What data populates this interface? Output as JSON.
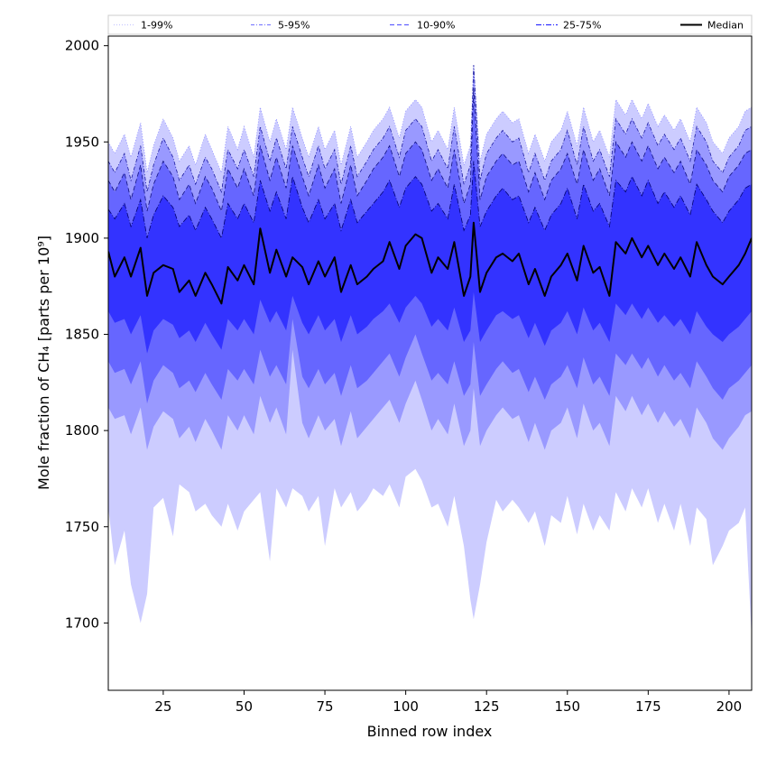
{
  "chart_data": {
    "type": "area",
    "xlabel": "Binned row index",
    "ylabel": "Mole fraction of CH₄ [parts per 10⁹]",
    "xlim": [
      8,
      207
    ],
    "ylim": [
      1665,
      2005
    ],
    "xticks": [
      25,
      50,
      75,
      100,
      125,
      150,
      175,
      200
    ],
    "yticks": [
      1700,
      1750,
      1800,
      1850,
      1900,
      1950,
      2000
    ],
    "grid": false,
    "legend_position": "top",
    "legend": [
      {
        "label": "1-99%",
        "style": "dotted",
        "color": "#c8c8ff"
      },
      {
        "label": "5-95%",
        "style": "dashdot",
        "color": "#8080ff"
      },
      {
        "label": "10-90%",
        "style": "dashed",
        "color": "#6060ff"
      },
      {
        "label": "25-75%",
        "style": "dashdot-dense",
        "color": "#3030ff"
      },
      {
        "label": "Median",
        "style": "solid",
        "color": "#000000"
      }
    ],
    "band_colors": {
      "p1_99": "#ccccff",
      "p5_95": "#9999ff",
      "p10_90": "#6666ff",
      "p25_75": "#3333ff"
    },
    "x_key": [
      8,
      10,
      13,
      15,
      18,
      20,
      22,
      25,
      28,
      30,
      33,
      35,
      38,
      40,
      43,
      45,
      48,
      50,
      53,
      55,
      58,
      60,
      63,
      65,
      68,
      70,
      73,
      75,
      78,
      80,
      83,
      85,
      88,
      90,
      93,
      95,
      98,
      100,
      103,
      105,
      108,
      110,
      113,
      115,
      118,
      120,
      121,
      123,
      125,
      128,
      130,
      133,
      135,
      138,
      140,
      143,
      145,
      148,
      150,
      153,
      155,
      158,
      160,
      163,
      165,
      168,
      170,
      173,
      175,
      178,
      180,
      183,
      185,
      188,
      190,
      193,
      195,
      198,
      200,
      203,
      205,
      207
    ],
    "median": [
      1893,
      1880,
      1890,
      1880,
      1895,
      1870,
      1882,
      1886,
      1884,
      1872,
      1878,
      1870,
      1882,
      1876,
      1866,
      1885,
      1878,
      1886,
      1876,
      1905,
      1882,
      1894,
      1880,
      1890,
      1885,
      1876,
      1888,
      1880,
      1890,
      1872,
      1886,
      1876,
      1880,
      1884,
      1888,
      1898,
      1884,
      1896,
      1902,
      1900,
      1882,
      1890,
      1884,
      1898,
      1870,
      1880,
      1908,
      1872,
      1882,
      1890,
      1892,
      1888,
      1892,
      1876,
      1884,
      1870,
      1880,
      1886,
      1892,
      1878,
      1896,
      1882,
      1885,
      1870,
      1898,
      1892,
      1900,
      1890,
      1896,
      1886,
      1892,
      1884,
      1890,
      1880,
      1898,
      1886,
      1880,
      1876,
      1880,
      1886,
      1892,
      1900
    ],
    "p25": [
      1862,
      1856,
      1858,
      1850,
      1860,
      1840,
      1852,
      1858,
      1855,
      1848,
      1852,
      1846,
      1856,
      1850,
      1842,
      1858,
      1852,
      1858,
      1850,
      1868,
      1856,
      1862,
      1852,
      1870,
      1856,
      1850,
      1860,
      1852,
      1858,
      1846,
      1860,
      1850,
      1854,
      1858,
      1862,
      1866,
      1856,
      1864,
      1870,
      1866,
      1854,
      1858,
      1852,
      1864,
      1846,
      1852,
      1872,
      1846,
      1852,
      1860,
      1862,
      1858,
      1860,
      1848,
      1856,
      1844,
      1852,
      1856,
      1862,
      1850,
      1864,
      1852,
      1856,
      1846,
      1866,
      1860,
      1866,
      1858,
      1864,
      1856,
      1860,
      1854,
      1858,
      1850,
      1862,
      1854,
      1850,
      1846,
      1850,
      1854,
      1858,
      1862
    ],
    "p75": [
      1915,
      1910,
      1918,
      1906,
      1920,
      1900,
      1912,
      1922,
      1916,
      1906,
      1912,
      1904,
      1916,
      1910,
      1900,
      1918,
      1910,
      1918,
      1908,
      1930,
      1914,
      1924,
      1910,
      1932,
      1916,
      1908,
      1920,
      1910,
      1918,
      1904,
      1920,
      1908,
      1914,
      1918,
      1924,
      1930,
      1916,
      1926,
      1932,
      1928,
      1914,
      1918,
      1910,
      1928,
      1904,
      1912,
      1940,
      1906,
      1914,
      1922,
      1926,
      1920,
      1922,
      1908,
      1916,
      1904,
      1912,
      1918,
      1926,
      1910,
      1928,
      1914,
      1918,
      1906,
      1930,
      1924,
      1932,
      1922,
      1930,
      1918,
      1924,
      1916,
      1922,
      1912,
      1928,
      1920,
      1914,
      1908,
      1914,
      1920,
      1926,
      1928
    ],
    "p10": [
      1836,
      1830,
      1832,
      1824,
      1836,
      1814,
      1826,
      1834,
      1830,
      1822,
      1826,
      1820,
      1830,
      1824,
      1816,
      1832,
      1826,
      1832,
      1824,
      1842,
      1828,
      1834,
      1824,
      1858,
      1828,
      1822,
      1832,
      1824,
      1830,
      1818,
      1834,
      1822,
      1826,
      1830,
      1836,
      1840,
      1828,
      1838,
      1850,
      1840,
      1826,
      1830,
      1824,
      1836,
      1818,
      1824,
      1846,
      1818,
      1824,
      1832,
      1836,
      1830,
      1832,
      1820,
      1828,
      1816,
      1824,
      1828,
      1834,
      1822,
      1838,
      1824,
      1828,
      1818,
      1840,
      1834,
      1840,
      1832,
      1838,
      1828,
      1834,
      1826,
      1830,
      1822,
      1836,
      1828,
      1822,
      1816,
      1822,
      1826,
      1830,
      1834
    ],
    "p90": [
      1930,
      1924,
      1934,
      1920,
      1938,
      1914,
      1928,
      1940,
      1932,
      1920,
      1928,
      1918,
      1932,
      1926,
      1914,
      1936,
      1926,
      1936,
      1922,
      1948,
      1930,
      1942,
      1926,
      1948,
      1932,
      1922,
      1938,
      1926,
      1936,
      1918,
      1938,
      1922,
      1930,
      1936,
      1942,
      1948,
      1932,
      1944,
      1950,
      1946,
      1930,
      1936,
      1926,
      1946,
      1918,
      1928,
      1978,
      1920,
      1932,
      1940,
      1944,
      1938,
      1940,
      1924,
      1934,
      1920,
      1930,
      1936,
      1944,
      1928,
      1946,
      1930,
      1936,
      1922,
      1950,
      1942,
      1950,
      1940,
      1948,
      1936,
      1942,
      1934,
      1940,
      1928,
      1946,
      1938,
      1930,
      1924,
      1932,
      1938,
      1944,
      1946
    ],
    "p5": [
      1812,
      1806,
      1808,
      1798,
      1812,
      1790,
      1802,
      1810,
      1806,
      1796,
      1802,
      1794,
      1806,
      1800,
      1790,
      1808,
      1800,
      1808,
      1798,
      1818,
      1804,
      1812,
      1798,
      1842,
      1804,
      1796,
      1808,
      1800,
      1806,
      1792,
      1810,
      1796,
      1802,
      1806,
      1812,
      1816,
      1804,
      1814,
      1826,
      1816,
      1800,
      1806,
      1798,
      1814,
      1792,
      1800,
      1822,
      1792,
      1800,
      1808,
      1812,
      1806,
      1808,
      1794,
      1804,
      1790,
      1800,
      1804,
      1812,
      1796,
      1814,
      1800,
      1804,
      1792,
      1818,
      1810,
      1818,
      1808,
      1814,
      1804,
      1810,
      1802,
      1806,
      1796,
      1812,
      1804,
      1796,
      1790,
      1796,
      1802,
      1808,
      1810
    ],
    "p95": [
      1940,
      1934,
      1944,
      1930,
      1948,
      1924,
      1938,
      1952,
      1942,
      1930,
      1938,
      1928,
      1942,
      1936,
      1924,
      1946,
      1936,
      1946,
      1932,
      1958,
      1940,
      1952,
      1936,
      1958,
      1942,
      1932,
      1948,
      1936,
      1946,
      1928,
      1948,
      1932,
      1940,
      1946,
      1952,
      1958,
      1942,
      1956,
      1962,
      1958,
      1940,
      1946,
      1936,
      1958,
      1928,
      1938,
      1990,
      1930,
      1944,
      1952,
      1956,
      1950,
      1952,
      1934,
      1944,
      1930,
      1940,
      1946,
      1956,
      1938,
      1958,
      1940,
      1946,
      1932,
      1962,
      1954,
      1962,
      1952,
      1960,
      1948,
      1954,
      1946,
      1952,
      1940,
      1958,
      1950,
      1940,
      1934,
      1942,
      1948,
      1956,
      1958
    ],
    "p1": [
      1760,
      1730,
      1748,
      1720,
      1700,
      1715,
      1760,
      1765,
      1745,
      1772,
      1768,
      1758,
      1762,
      1756,
      1750,
      1762,
      1748,
      1758,
      1764,
      1768,
      1732,
      1770,
      1760,
      1770,
      1766,
      1758,
      1766,
      1740,
      1770,
      1760,
      1768,
      1758,
      1764,
      1770,
      1766,
      1772,
      1760,
      1776,
      1780,
      1774,
      1760,
      1762,
      1750,
      1766,
      1740,
      1712,
      1702,
      1720,
      1742,
      1764,
      1758,
      1764,
      1760,
      1752,
      1758,
      1740,
      1756,
      1752,
      1766,
      1746,
      1762,
      1748,
      1756,
      1748,
      1768,
      1758,
      1770,
      1760,
      1770,
      1752,
      1762,
      1748,
      1762,
      1740,
      1760,
      1754,
      1730,
      1740,
      1748,
      1752,
      1760,
      1692
    ],
    "p99": [
      1950,
      1944,
      1954,
      1942,
      1960,
      1934,
      1948,
      1962,
      1952,
      1940,
      1948,
      1938,
      1954,
      1946,
      1934,
      1958,
      1946,
      1958,
      1942,
      1968,
      1950,
      1962,
      1946,
      1968,
      1952,
      1942,
      1958,
      1946,
      1956,
      1938,
      1958,
      1942,
      1950,
      1956,
      1962,
      1968,
      1952,
      1966,
      1972,
      1968,
      1950,
      1956,
      1946,
      1968,
      1938,
      1948,
      1990,
      1940,
      1954,
      1962,
      1966,
      1960,
      1962,
      1944,
      1954,
      1940,
      1950,
      1956,
      1966,
      1948,
      1968,
      1950,
      1956,
      1942,
      1972,
      1964,
      1972,
      1962,
      1970,
      1958,
      1964,
      1956,
      1962,
      1950,
      1968,
      1960,
      1950,
      1944,
      1952,
      1958,
      1966,
      1968
    ]
  }
}
